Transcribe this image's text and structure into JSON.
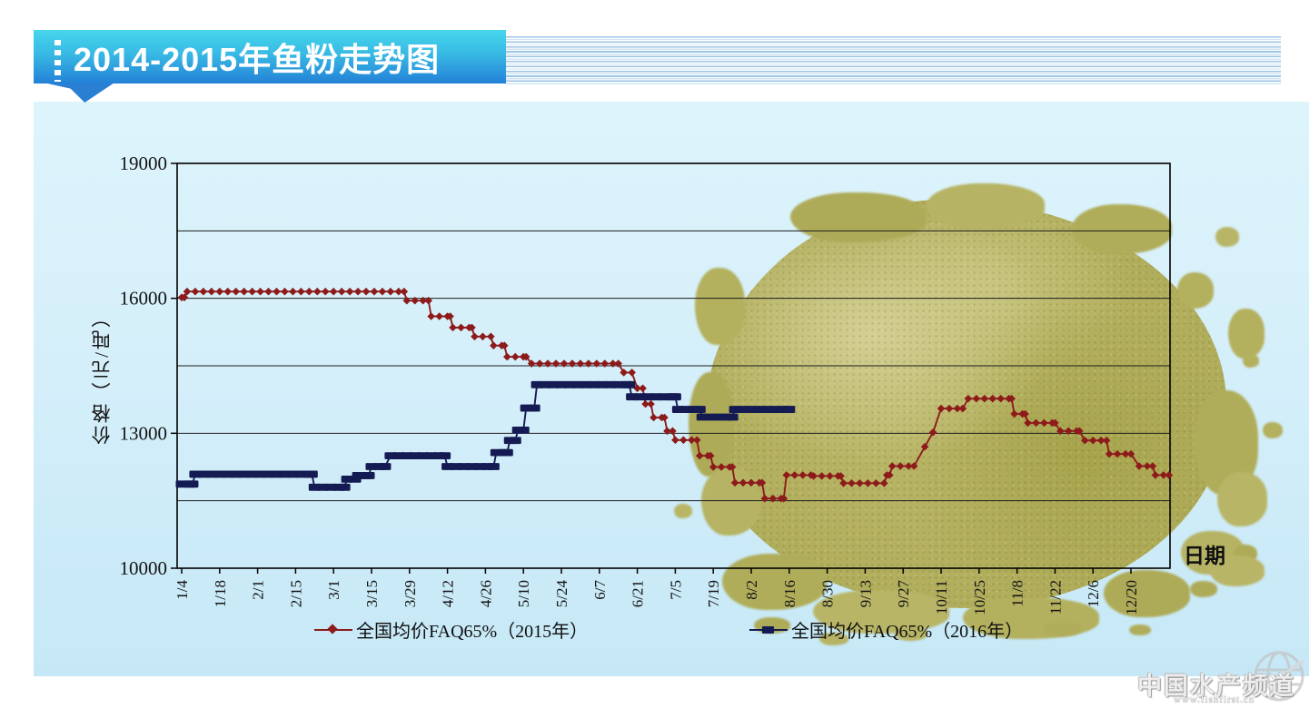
{
  "header": {
    "title": "2014-2015年鱼粉走势图"
  },
  "watermark": {
    "name": "中国水产频道",
    "url": "www.fishfirst.cn"
  },
  "colors": {
    "banner_top": "#46d7ec",
    "banner_bottom": "#2381d7",
    "panel_top": "#ddf4fb",
    "panel_bottom": "#c6e8f6",
    "series_2015": "#8d1b1b",
    "series_2016": "#141a52",
    "gridline": "#1c1c1c",
    "powder": "#b2af5e"
  },
  "chart_data": {
    "type": "line",
    "title": "2014-2015年鱼粉走势图",
    "xlabel": "日期",
    "ylabel": "价格（元/吨）",
    "ylim": [
      10000,
      19000
    ],
    "y_ticks": [
      19000,
      16000,
      13000,
      10000
    ],
    "y_gridline_step": 1500,
    "grid": "horizontal",
    "legend_position": "bottom",
    "x_ticks": [
      "1/4",
      "1/18",
      "2/1",
      "2/15",
      "3/1",
      "3/15",
      "3/29",
      "4/12",
      "4/26",
      "5/10",
      "5/24",
      "6/7",
      "6/21",
      "7/5",
      "7/19",
      "8/2",
      "8/16",
      "8/30",
      "9/13",
      "9/27",
      "10/11",
      "10/25",
      "11/8",
      "11/22",
      "12/6",
      "12/20"
    ],
    "x_tick_interval_days": 14,
    "segment_format": "[day_start_from_1/4, day_end, price_yuan_per_ton]",
    "series": [
      {
        "name": "全国均价FAQ65%（2015年）",
        "color": "#8d1b1b",
        "marker": "diamond",
        "segments": [
          [
            0,
            1,
            16020
          ],
          [
            2,
            82,
            16150
          ],
          [
            83,
            91,
            15950
          ],
          [
            92,
            99,
            15600
          ],
          [
            100,
            107,
            15350
          ],
          [
            108,
            114,
            15150
          ],
          [
            115,
            119,
            14950
          ],
          [
            120,
            127,
            14700
          ],
          [
            129,
            161,
            14550
          ],
          [
            163,
            166,
            14350
          ],
          [
            168,
            170,
            14000
          ],
          [
            171,
            173,
            13650
          ],
          [
            174,
            178,
            13350
          ],
          [
            179,
            181,
            13050
          ],
          [
            182,
            190,
            12850
          ],
          [
            191,
            195,
            12500
          ],
          [
            196,
            203,
            12250
          ],
          [
            204,
            214,
            11900
          ],
          [
            215,
            222,
            11550
          ],
          [
            223,
            232,
            12070
          ],
          [
            233,
            243,
            12050
          ],
          [
            244,
            259,
            11890
          ],
          [
            260,
            261,
            12070
          ],
          [
            262,
            270,
            12270
          ],
          [
            274,
            274,
            12700
          ],
          [
            277,
            277,
            13020
          ],
          [
            280,
            288,
            13550
          ],
          [
            290,
            306,
            13770
          ],
          [
            307,
            311,
            13430
          ],
          [
            312,
            322,
            13230
          ],
          [
            324,
            331,
            13050
          ],
          [
            333,
            341,
            12840
          ],
          [
            342,
            350,
            12540
          ],
          [
            353,
            358,
            12270
          ],
          [
            359,
            364,
            12070
          ]
        ]
      },
      {
        "name": "全国均价FAQ65%（2016年）",
        "color": "#141a52",
        "marker": "square",
        "segments": [
          [
            0,
            4,
            11870
          ],
          [
            5,
            48,
            12090
          ],
          [
            49,
            60,
            11800
          ],
          [
            61,
            64,
            11980
          ],
          [
            65,
            69,
            12060
          ],
          [
            70,
            75,
            12260
          ],
          [
            77,
            97,
            12500
          ],
          [
            98,
            115,
            12260
          ],
          [
            116,
            120,
            12570
          ],
          [
            121,
            123,
            12840
          ],
          [
            124,
            126,
            13070
          ],
          [
            127,
            130,
            13560
          ],
          [
            131,
            165,
            14080
          ],
          [
            166,
            182,
            13810
          ],
          [
            183,
            191,
            13530
          ],
          [
            192,
            203,
            13360
          ],
          [
            204,
            224,
            13530
          ]
        ]
      }
    ]
  }
}
